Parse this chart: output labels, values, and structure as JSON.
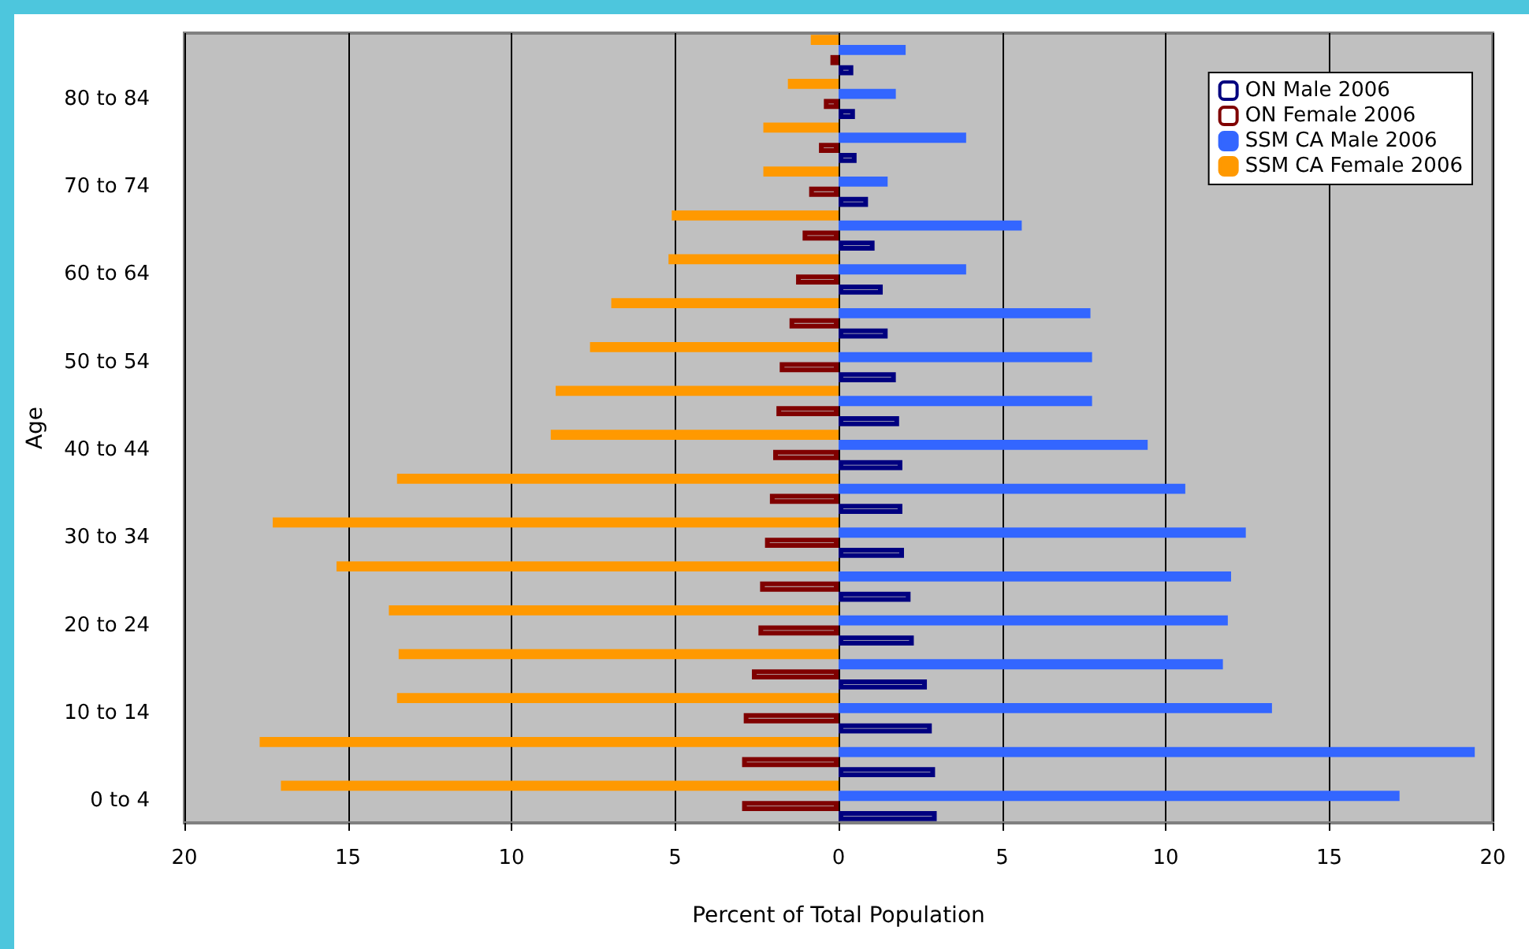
{
  "chart_data": {
    "type": "bar",
    "orientation": "horizontal",
    "xlabel": "Percent of Total Population",
    "ylabel": "Age",
    "categories": [
      null,
      "80 to 84",
      null,
      "70 to 74",
      null,
      "60 to 64",
      null,
      "50 to 54",
      null,
      "40 to 44",
      null,
      "30 to 34",
      null,
      "20 to 24",
      null,
      "10 to 14",
      null,
      "0 to 4"
    ],
    "series": [
      {
        "name": "ON Male 2006",
        "color": "#000080",
        "values": [
          0.45,
          0.5,
          0.55,
          0.9,
          1.1,
          1.35,
          1.5,
          1.75,
          1.85,
          1.95,
          1.95,
          2.0,
          2.2,
          2.3,
          2.7,
          2.85,
          2.95,
          3.0
        ]
      },
      {
        "name": "ON Female 2006",
        "color": "#800000",
        "values": [
          -0.25,
          -0.45,
          -0.6,
          -0.9,
          -1.1,
          -1.3,
          -1.5,
          -1.8,
          -1.9,
          -2.0,
          -2.1,
          -2.25,
          -2.4,
          -2.45,
          -2.65,
          -2.9,
          -2.95,
          -2.95
        ]
      },
      {
        "name": "SSM CA Male 2006",
        "color": "#3366ff",
        "values": [
          2.05,
          1.75,
          3.9,
          1.5,
          5.6,
          3.9,
          7.7,
          7.75,
          7.75,
          9.45,
          10.6,
          12.45,
          12.0,
          11.9,
          11.75,
          13.25,
          19.45,
          17.15
        ]
      },
      {
        "name": "SSM CA Female 2006",
        "color": "#ff9900",
        "values": [
          -0.85,
          -1.55,
          -2.3,
          -2.3,
          -5.1,
          -5.2,
          -6.95,
          -7.6,
          -8.65,
          -8.8,
          -13.5,
          -17.3,
          -15.35,
          -13.75,
          -13.45,
          -13.5,
          -17.7,
          -17.05
        ]
      }
    ],
    "xlim": [
      -20,
      20
    ],
    "xticks": [
      {
        "value": -20,
        "label": "20"
      },
      {
        "value": -15,
        "label": "15"
      },
      {
        "value": -10,
        "label": "10"
      },
      {
        "value": -5,
        "label": "5"
      },
      0,
      5,
      10,
      15,
      {
        "value": 20,
        "label": "20"
      }
    ],
    "grid": "x",
    "legend": "top right",
    "stacked": false
  }
}
